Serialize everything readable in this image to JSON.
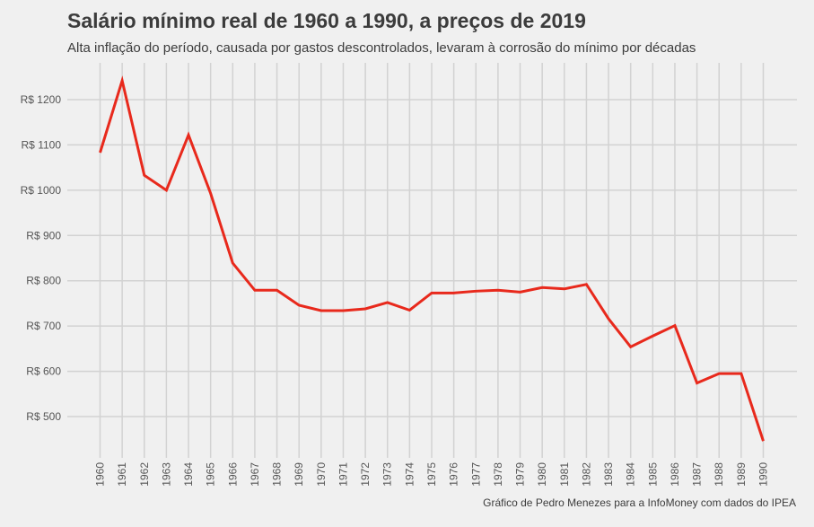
{
  "chart_data": {
    "type": "line",
    "title": "Salário mínimo real de 1960 a 1990, a preços de 2019",
    "subtitle": "Alta inflação do período, causada por gastos descontrolados, levaram à corrosão do mínimo por décadas",
    "caption": "Gráfico de Pedro Menezes para a InfoMoney com dados do IPEA",
    "xlabel": "",
    "ylabel": "",
    "x": [
      1960,
      1961,
      1962,
      1963,
      1964,
      1965,
      1966,
      1967,
      1968,
      1969,
      1970,
      1971,
      1972,
      1973,
      1974,
      1975,
      1976,
      1977,
      1978,
      1979,
      1980,
      1981,
      1982,
      1983,
      1984,
      1985,
      1986,
      1987,
      1988,
      1989,
      1990
    ],
    "x_tick_labels": [
      "1960",
      "1961",
      "1962",
      "1963",
      "1964",
      "1965",
      "1966",
      "1967",
      "1968",
      "1969",
      "1970",
      "1971",
      "1972",
      "1973",
      "1974",
      "1975",
      "1976",
      "1977",
      "1978",
      "1979",
      "1980",
      "1981",
      "1982",
      "1983",
      "1984",
      "1985",
      "1986",
      "1987",
      "1988",
      "1989",
      "1990"
    ],
    "series": [
      {
        "name": "Salário mínimo real",
        "color": "#e8291c",
        "values": [
          1083,
          1242,
          1033,
          1000,
          1122,
          993,
          839,
          779,
          779,
          746,
          734,
          734,
          738,
          752,
          735,
          773,
          773,
          777,
          779,
          775,
          785,
          782,
          792,
          716,
          654,
          678,
          701,
          574,
          595,
          595,
          446
        ]
      }
    ],
    "y_ticks": [
      500,
      600,
      700,
      800,
      900,
      1000,
      1100,
      1200
    ],
    "y_tick_labels": [
      "R$ 500",
      "R$ 600",
      "R$ 700",
      "R$ 800",
      "R$ 900",
      "R$ 1000",
      "R$ 1100",
      "R$ 1200"
    ],
    "ylim": [
      410,
      1270
    ],
    "xlim": [
      1960,
      1990
    ],
    "grid": true,
    "legend": "none",
    "colors": {
      "background": "#f0f0f0",
      "grid": "#d2d2d2",
      "text": "#3c3c3c",
      "tick_text": "#555555"
    }
  }
}
